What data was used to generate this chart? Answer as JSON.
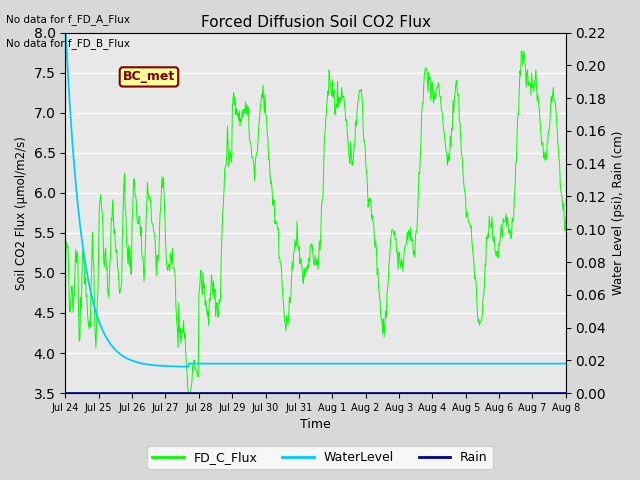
{
  "title": "Forced Diffusion Soil CO2 Flux",
  "xlabel": "Time",
  "ylabel_left": "Soil CO2 Flux (μmol/m2/s)",
  "ylabel_right": "Water Level (psi), Rain (cm)",
  "no_data_text": [
    "No data for f_FD_A_Flux",
    "No data for f_FD_B_Flux"
  ],
  "bc_met_label": "BC_met",
  "ylim_left": [
    3.5,
    8.0
  ],
  "ylim_right": [
    0.0,
    0.22
  ],
  "yticks_left": [
    3.5,
    4.0,
    4.5,
    5.0,
    5.5,
    6.0,
    6.5,
    7.0,
    7.5,
    8.0
  ],
  "yticks_right": [
    0.0,
    0.02,
    0.04,
    0.06,
    0.08,
    0.1,
    0.12,
    0.14,
    0.16,
    0.18,
    0.2,
    0.22
  ],
  "xtick_labels": [
    "Jul 24",
    "Jul 25",
    "Jul 26",
    "Jul 27",
    "Jul 28",
    "Jul 29",
    "Jul 30",
    "Jul 31",
    "Aug 1",
    "Aug 2",
    "Aug 3",
    "Aug 4",
    "Aug 5",
    "Aug 6",
    "Aug 7",
    "Aug 8"
  ],
  "bg_color": "#d8d8d8",
  "plot_bg_color": "#e8e8e8",
  "flux_color": "#00ff00",
  "water_color": "#00ccff",
  "rain_color": "#00008b",
  "bc_met_bg": "#ffff99",
  "bc_met_border": "#800000",
  "n_days": 15,
  "n_points": 720
}
